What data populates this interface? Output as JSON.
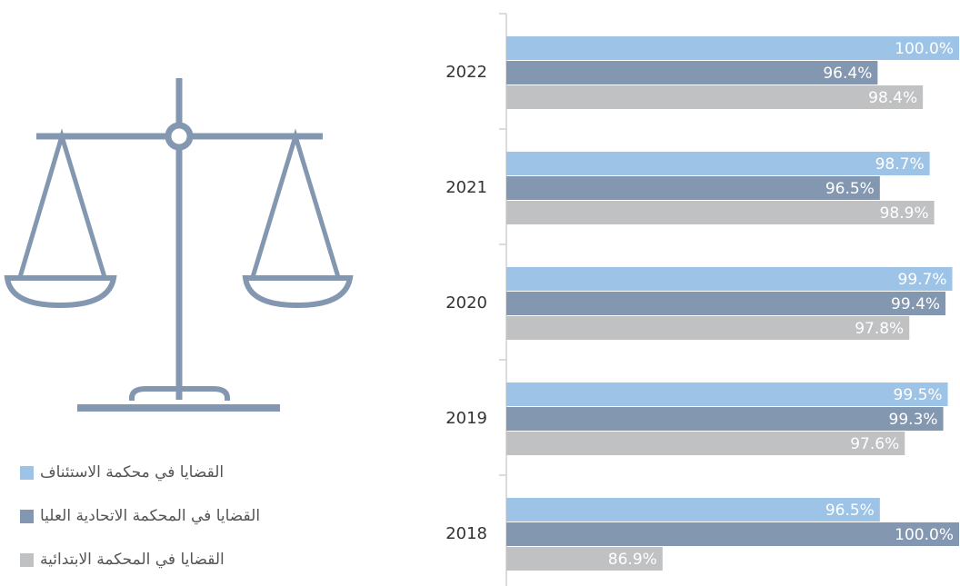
{
  "chart_data": {
    "type": "bar",
    "categories": [
      "2022",
      "2021",
      "2020",
      "2019",
      "2018"
    ],
    "series": [
      {
        "name": "القضايا في محكمة الاستئناف",
        "color": "#9dc3e6",
        "values": [
          100.0,
          98.7,
          99.7,
          99.5,
          96.5
        ],
        "value_labels": [
          "100.0%",
          "98.7%",
          "99.7%",
          "99.5%",
          "96.5%"
        ]
      },
      {
        "name": "القضايا في المحكمة الاتحادية العليا",
        "color": "#8497b0",
        "values": [
          96.4,
          96.5,
          99.4,
          99.3,
          100.0
        ],
        "value_labels": [
          "96.4%",
          "96.5%",
          "99.4%",
          "99.3%",
          "100.0%"
        ]
      },
      {
        "name": "القضايا في المحكمة الابتدائية",
        "color": "#bfc1c3",
        "values": [
          98.4,
          98.9,
          97.8,
          97.6,
          86.9
        ],
        "value_labels": [
          "98.4%",
          "98.9%",
          "97.8%",
          "97.6%",
          "86.9%"
        ]
      }
    ],
    "xlim": [
      80,
      100
    ]
  }
}
